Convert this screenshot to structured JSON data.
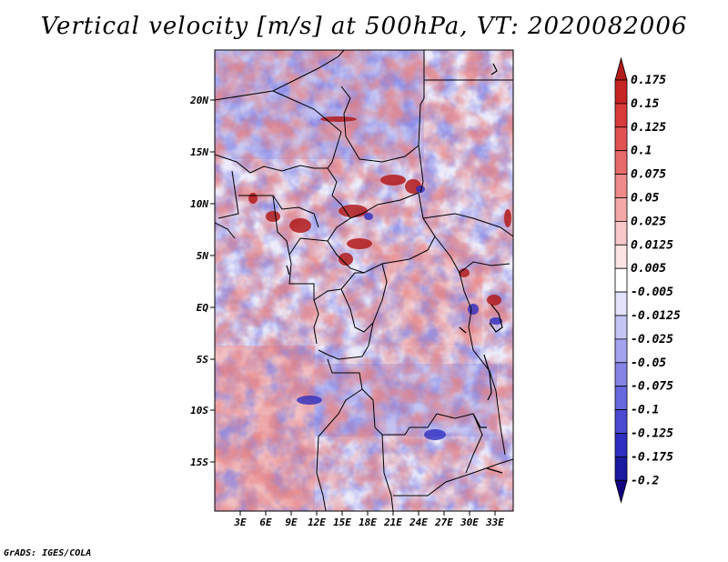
{
  "title": "Vertical velocity [m/s] at 500hPa, VT: 2020082006",
  "footer": "GrADS: IGES/COLA",
  "map": {
    "lat_labels": [
      "20N",
      "15N",
      "10N",
      "5N",
      "EQ",
      "5S",
      "10S",
      "15S"
    ],
    "lon_labels": [
      "3E",
      "6E",
      "9E",
      "12E",
      "15E",
      "18E",
      "21E",
      "24E",
      "27E",
      "30E",
      "33E"
    ]
  },
  "colorbar": {
    "levels": [
      "0.175",
      "0.15",
      "0.125",
      "0.1",
      "0.075",
      "0.05",
      "0.025",
      "0.0125",
      "0.005",
      "-0.005",
      "-0.0125",
      "-0.025",
      "-0.05",
      "-0.075",
      "-0.1",
      "-0.125",
      "-0.175",
      "-0.2"
    ],
    "colors": [
      "#b21c1c",
      "#c72424",
      "#d93a3a",
      "#e35252",
      "#e86b6b",
      "#ee8a8a",
      "#f4a9a9",
      "#f8c8c8",
      "#fce4e4",
      "#ffffff",
      "#e2e2fb",
      "#c5c5f5",
      "#a3a3ee",
      "#8585e6",
      "#6767de",
      "#4a4ad2",
      "#2e2ec0",
      "#1a1aa0",
      "#100080"
    ]
  }
}
